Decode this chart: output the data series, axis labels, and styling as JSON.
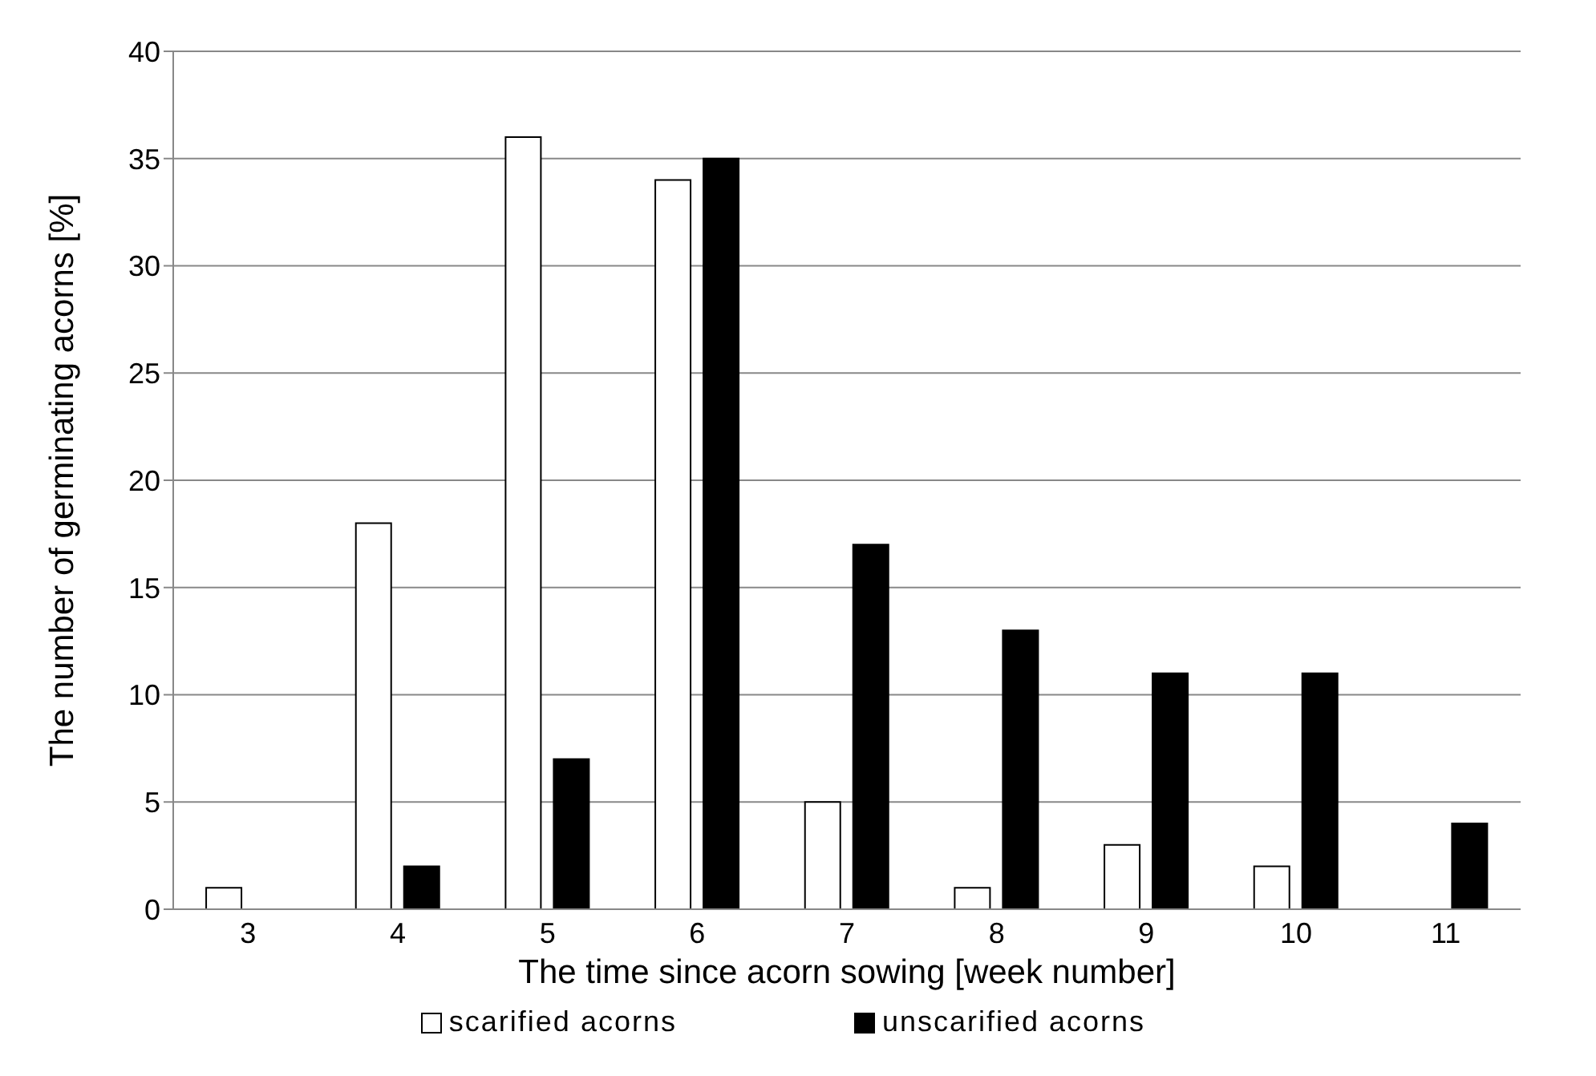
{
  "chart_data": {
    "type": "bar",
    "xlabel": "The time since acorn sowing [week number]",
    "ylabel": "The number of germinating acorns [%]",
    "categories": [
      "3",
      "4",
      "5",
      "6",
      "7",
      "8",
      "9",
      "10",
      "11"
    ],
    "series": [
      {
        "name": "scarified acorns",
        "color": "#ffffff",
        "values": [
          1,
          18,
          36,
          34,
          5,
          1,
          3,
          2,
          0
        ]
      },
      {
        "name": "unscarified acorns",
        "color": "#000000",
        "values": [
          0,
          2,
          7,
          35,
          17,
          13,
          11,
          11,
          4
        ]
      }
    ],
    "ylim": [
      0,
      40
    ],
    "yticks": [
      0,
      5,
      10,
      15,
      20,
      25,
      30,
      35,
      40
    ],
    "grid": "y",
    "legend": "bottom"
  }
}
